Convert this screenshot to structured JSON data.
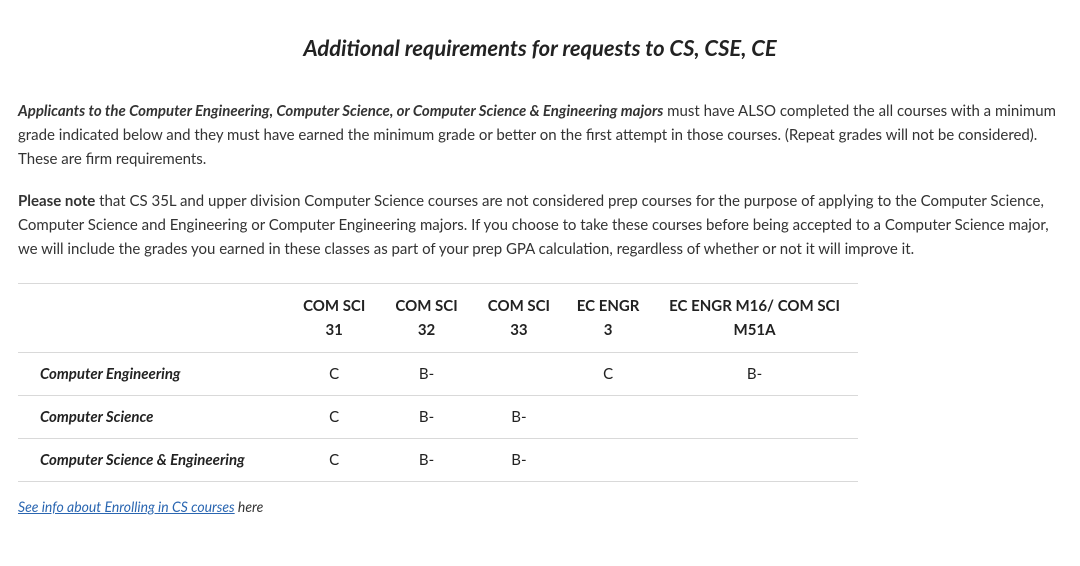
{
  "title": "Additional requirements for requests to CS, CSE, CE",
  "para1_bold": "Applicants to the Computer Engineering, Computer Science, or Computer Science & Engineering majors",
  "para1_rest": " must have ALSO completed the all courses with a minimum grade indicated below and they must have earned the minimum grade or better on the first attempt in those courses. (Repeat grades will not be considered). These are firm requirements.",
  "para2_bold": "Please note",
  "para2_rest": " that CS 35L and upper division Computer Science courses are not considered prep courses for the purpose of applying to the Computer Science, Computer Science and Engineering or Computer Engineering majors. If you choose to take these courses before being accepted to a Computer Science major, we will include the grades you earned in these classes as part of your prep GPA calculation, regardless of whether or not it will improve it.",
  "table": {
    "columns": [
      "",
      "COM SCI 31",
      "COM SCI 32",
      "COM SCI 33",
      "EC ENGR 3",
      "EC ENGR M16/ COM SCI M51A"
    ],
    "rows": [
      {
        "label": "Computer Engineering",
        "cells": [
          "C",
          "B-",
          "",
          "C",
          "B-"
        ]
      },
      {
        "label": "Computer Science",
        "cells": [
          "C",
          "B-",
          "B-",
          "",
          ""
        ]
      },
      {
        "label": "Computer Science & Engineering",
        "cells": [
          "C",
          "B-",
          "B-",
          "",
          ""
        ]
      }
    ]
  },
  "footer": {
    "link_text": "See info about Enrolling in CS courses",
    "trailing": " here"
  },
  "colors": {
    "text": "#2b2b2b",
    "border": "#d9d9d9",
    "link": "#2a66b1",
    "background": "#ffffff"
  }
}
